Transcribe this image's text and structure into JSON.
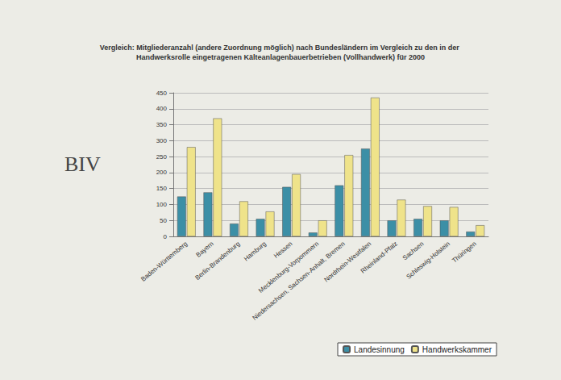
{
  "chart_data": {
    "type": "bar",
    "title": "Vergleich: Mitgliederanzahl (andere Zuordnung möglich) nach Bundesländern im Vergleich zu den in der Handwerksrolle eingetragenen Kälteanlagenbauerbetrieben (Vollhandwerk) für 2000",
    "annotations": [
      "BIV"
    ],
    "categories": [
      "Baden-Württemberg",
      "Bayern",
      "Berlin-Brandenburg",
      "Hamburg",
      "Hessen",
      "Mecklenburg-Vorpommern",
      "Niedersachsen, Sachsen-Anhalt, Bremen",
      "Nordrhein-Westfalen",
      "Rheinland-Pfalz",
      "Sachsen",
      "Schleswig-Holstein",
      "Thüringen"
    ],
    "series": [
      {
        "name": "Landesinnung",
        "color": "#3c8fa6",
        "values": [
          125,
          138,
          40,
          55,
          155,
          12,
          160,
          275,
          50,
          55,
          50,
          15
        ]
      },
      {
        "name": "Handwerkskammer",
        "color": "#efe38a",
        "values": [
          280,
          370,
          110,
          78,
          195,
          50,
          255,
          435,
          115,
          95,
          92,
          35
        ]
      }
    ],
    "ylim": [
      0,
      450
    ],
    "yticks": [
      0,
      50,
      100,
      150,
      200,
      250,
      300,
      350,
      400,
      450
    ],
    "grid": true,
    "legend": "bottom-right"
  }
}
